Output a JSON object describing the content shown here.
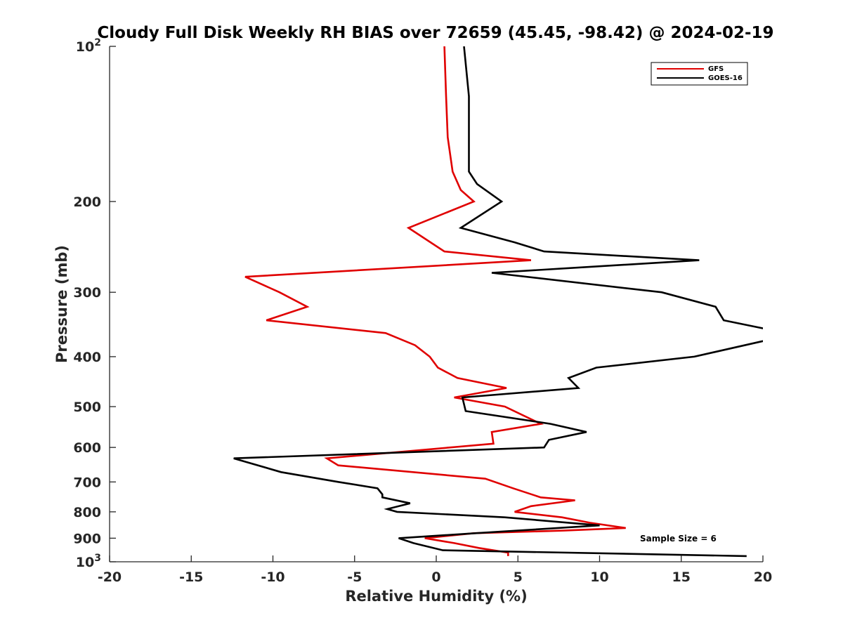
{
  "chart_data": {
    "type": "line",
    "title": "Cloudy Full Disk Weekly RH BIAS over 72659 (45.45, -98.42) @ 2024-02-19",
    "xlabel": "Relative Humidity (%)",
    "ylabel": "Pressure (mb)",
    "xlim": [
      -20,
      20
    ],
    "ylim": [
      100,
      1000
    ],
    "yscale": "log",
    "y_reversed": true,
    "grid": false,
    "legend_position": "top-right",
    "x_ticks": [
      "-20",
      "-15",
      "-10",
      "-5",
      "0",
      "5",
      "10",
      "15",
      "20"
    ],
    "y_ticks": [
      {
        "value": 100,
        "base": "10",
        "exp": "2"
      },
      {
        "value": 200,
        "label": "200"
      },
      {
        "value": 300,
        "label": "300"
      },
      {
        "value": 400,
        "label": "400"
      },
      {
        "value": 500,
        "label": "500"
      },
      {
        "value": 600,
        "label": "600"
      },
      {
        "value": 700,
        "label": "700"
      },
      {
        "value": 800,
        "label": "800"
      },
      {
        "value": 900,
        "label": "900"
      },
      {
        "value": 1000,
        "base": "10",
        "exp": "3"
      }
    ],
    "annotation": "Sample Size = 6",
    "series": [
      {
        "name": "GFS",
        "color": "#e00000",
        "points": [
          [
            0.5,
            100
          ],
          [
            0.6,
            125
          ],
          [
            0.7,
            150
          ],
          [
            1.0,
            175
          ],
          [
            1.5,
            190
          ],
          [
            2.3,
            200
          ],
          [
            -1.7,
            225
          ],
          [
            0.5,
            250
          ],
          [
            5.8,
            260
          ],
          [
            -11.7,
            280
          ],
          [
            -9.6,
            300
          ],
          [
            -7.9,
            320
          ],
          [
            -10.4,
            340
          ],
          [
            -3.1,
            360
          ],
          [
            -1.3,
            380
          ],
          [
            -0.4,
            400
          ],
          [
            0.1,
            420
          ],
          [
            1.3,
            440
          ],
          [
            4.3,
            460
          ],
          [
            1.1,
            480
          ],
          [
            4.2,
            500
          ],
          [
            6.4,
            540
          ],
          [
            3.4,
            560
          ],
          [
            3.5,
            590
          ],
          [
            -6.7,
            630
          ],
          [
            -6.0,
            650
          ],
          [
            3.0,
            690
          ],
          [
            4.7,
            720
          ],
          [
            6.4,
            750
          ],
          [
            8.5,
            760
          ],
          [
            5.8,
            780
          ],
          [
            4.8,
            800
          ],
          [
            7.7,
            820
          ],
          [
            9.4,
            840
          ],
          [
            11.6,
            860
          ],
          [
            7.8,
            870
          ],
          [
            2.3,
            880
          ],
          [
            -0.7,
            900
          ],
          [
            1.1,
            920
          ],
          [
            2.6,
            940
          ],
          [
            4.4,
            960
          ],
          [
            4.4,
            975
          ]
        ]
      },
      {
        "name": "GOES-16",
        "color": "#000000",
        "points": [
          [
            1.7,
            100
          ],
          [
            2.0,
            125
          ],
          [
            2.0,
            150
          ],
          [
            2.0,
            175
          ],
          [
            2.5,
            185
          ],
          [
            4.0,
            200
          ],
          [
            1.5,
            225
          ],
          [
            4.8,
            240
          ],
          [
            6.6,
            250
          ],
          [
            16.1,
            260
          ],
          [
            3.4,
            275
          ],
          [
            13.8,
            300
          ],
          [
            17.1,
            320
          ],
          [
            17.6,
            340
          ],
          [
            20.5,
            355
          ],
          [
            20.5,
            370
          ],
          [
            15.8,
            400
          ],
          [
            9.8,
            420
          ],
          [
            8.1,
            440
          ],
          [
            8.7,
            460
          ],
          [
            1.6,
            480
          ],
          [
            1.8,
            510
          ],
          [
            7.0,
            540
          ],
          [
            9.2,
            560
          ],
          [
            6.9,
            580
          ],
          [
            6.6,
            600
          ],
          [
            -12.4,
            630
          ],
          [
            -9.5,
            670
          ],
          [
            -6.0,
            700
          ],
          [
            -3.6,
            720
          ],
          [
            -3.3,
            740
          ],
          [
            -3.3,
            750
          ],
          [
            -1.6,
            770
          ],
          [
            -3.0,
            790
          ],
          [
            -2.4,
            800
          ],
          [
            4.2,
            820
          ],
          [
            10.0,
            850
          ],
          [
            2.4,
            880
          ],
          [
            -2.3,
            900
          ],
          [
            -1.4,
            920
          ],
          [
            0.4,
            950
          ],
          [
            19.0,
            975
          ]
        ]
      }
    ]
  }
}
